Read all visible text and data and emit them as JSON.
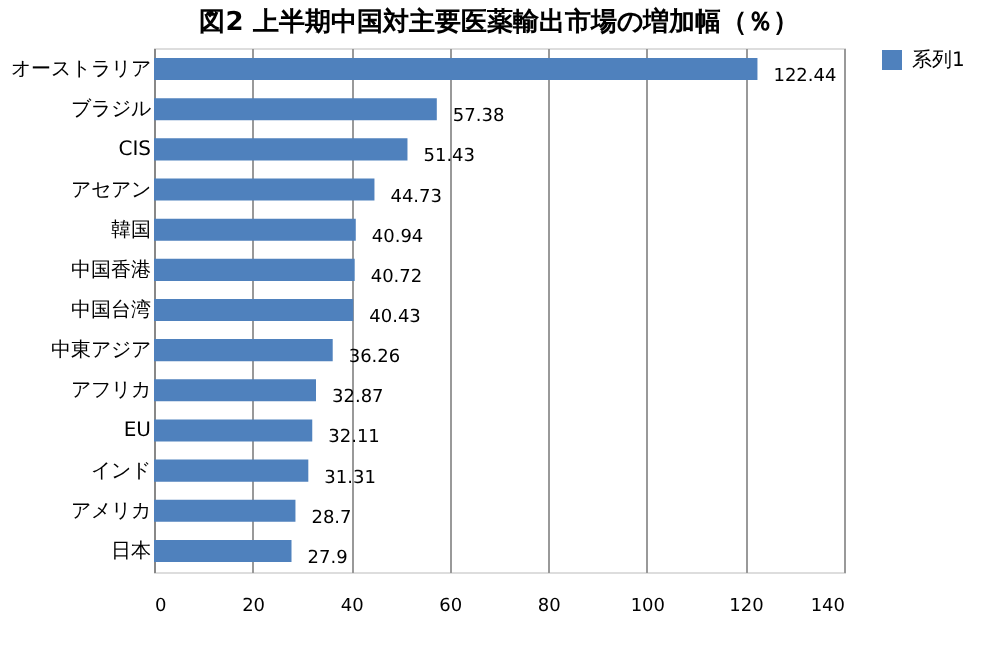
{
  "chart_data": {
    "type": "bar",
    "orientation": "horizontal",
    "title": "図2 上半期中国対主要医薬輸出市場の増加幅（％）",
    "categories": [
      "オーストラリア",
      "ブラジル",
      "CIS",
      "アセアン",
      "韓国",
      "中国香港",
      "中国台湾",
      "中東アジア",
      "アフリカ",
      "EU",
      "インド",
      "アメリカ",
      "日本"
    ],
    "series": [
      {
        "name": "系列1",
        "color": "#4f81bd",
        "values": [
          122.44,
          57.38,
          51.43,
          44.73,
          40.94,
          40.72,
          40.43,
          36.26,
          32.87,
          32.11,
          31.31,
          28.7,
          27.9
        ]
      }
    ],
    "xlim": [
      0,
      140
    ],
    "xticks": [
      0,
      20,
      40,
      60,
      80,
      100,
      120,
      140
    ],
    "grid": "x",
    "legend": "right",
    "data_labels": true
  }
}
